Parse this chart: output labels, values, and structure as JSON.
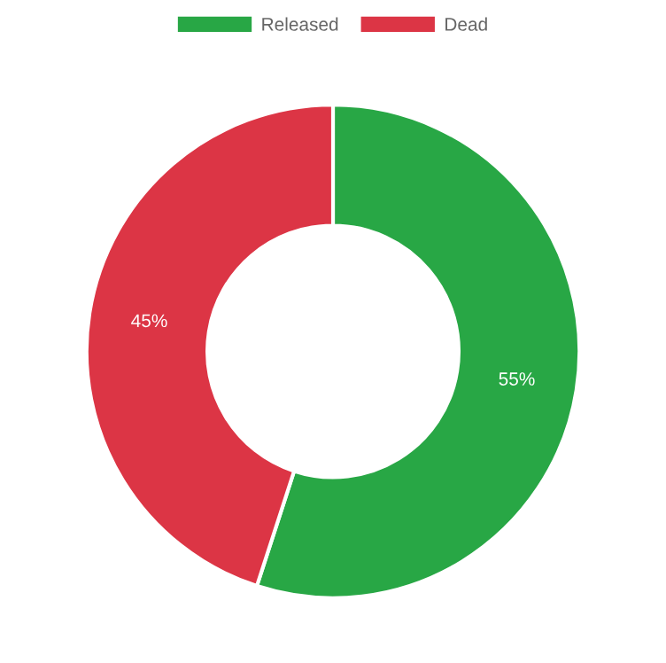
{
  "chart_data": {
    "type": "donut",
    "categories": [
      "Released",
      "Dead"
    ],
    "values": [
      55,
      45
    ],
    "colors": [
      "#28a745",
      "#dc3545"
    ],
    "value_labels": [
      "55%",
      "45%"
    ],
    "legend": "top"
  }
}
